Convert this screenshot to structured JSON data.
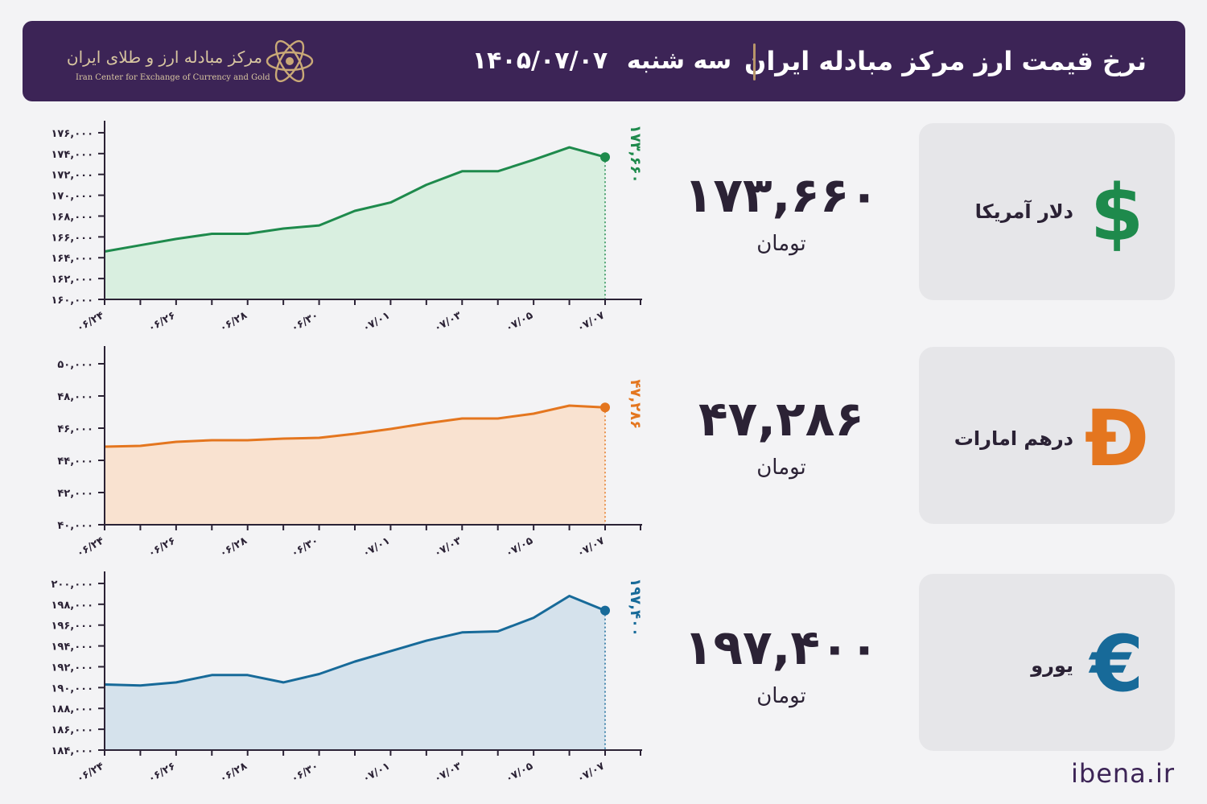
{
  "header": {
    "title": "نرخ قیمت ارز مرکز مبادله ایران",
    "day": "سه شنبه",
    "date": "۱۴۰۵/۰۷/۰۷",
    "logo_text_fa": "مرکز مبادله ارز و طلای ایران",
    "logo_text_en": "Iran Center for Exchange of Currency and Gold"
  },
  "currencies": [
    {
      "name": "دلار آمریکا",
      "price": "۱۷۳,۶۶۰",
      "unit": "تومان",
      "symbol": "$",
      "icon": "dollar-icon",
      "color": "#1e8a4c"
    },
    {
      "name": "درهم امارات",
      "price": "۴۷,۲۸۶",
      "unit": "تومان",
      "symbol": "Đ",
      "icon": "dirham-icon",
      "color": "#e4761f"
    },
    {
      "name": "یورو",
      "price": "۱۹۷,۴۰۰",
      "unit": "تومان",
      "symbol": "€",
      "icon": "euro-icon",
      "color": "#176a99"
    }
  ],
  "footer": {
    "site": "ibena.ir"
  },
  "chart_data": [
    {
      "type": "area",
      "currency": "USD",
      "color": "#1e8a4c",
      "fill": "#d9efe0",
      "x": [
        "۰۶/۲۴",
        "۰۶/۲۵",
        "۰۶/۲۶",
        "۰۶/۲۷",
        "۰۶/۲۸",
        "۰۶/۲۹",
        "۰۶/۳۰",
        "۰۶/۳۱",
        "۰۷/۰۱",
        "۰۷/۰۲",
        "۰۷/۰۳",
        "۰۷/۰۴",
        "۰۷/۰۵",
        "۰۷/۰۶",
        "۰۷/۰۷"
      ],
      "xticks": [
        "۰۶/۲۴",
        "۰۶/۲۶",
        "۰۶/۲۸",
        "۰۶/۳۰",
        "۰۷/۰۱",
        "۰۷/۰۳",
        "۰۷/۰۵",
        "۰۷/۰۷"
      ],
      "values": [
        164600,
        165200,
        165800,
        166300,
        166300,
        166800,
        167100,
        168500,
        169300,
        171000,
        172300,
        172300,
        173400,
        174600,
        173660
      ],
      "ylim": [
        160000,
        177000
      ],
      "yticks": [
        160000,
        162000,
        164000,
        166000,
        168000,
        170000,
        172000,
        174000,
        176000
      ],
      "ytick_labels": [
        "۱۶۰,۰۰۰",
        "۱۶۲,۰۰۰",
        "۱۶۴,۰۰۰",
        "۱۶۶,۰۰۰",
        "۱۶۸,۰۰۰",
        "۱۷۰,۰۰۰",
        "۱۷۲,۰۰۰",
        "۱۷۴,۰۰۰",
        "۱۷۶,۰۰۰"
      ],
      "last_label": "۱۷۳,۶۶۰"
    },
    {
      "type": "area",
      "currency": "AED",
      "color": "#e4761f",
      "fill": "#f9e2d0",
      "x": [
        "۰۶/۲۴",
        "۰۶/۲۵",
        "۰۶/۲۶",
        "۰۶/۲۷",
        "۰۶/۲۸",
        "۰۶/۲۹",
        "۰۶/۳۰",
        "۰۶/۳۱",
        "۰۷/۰۱",
        "۰۷/۰۲",
        "۰۷/۰۳",
        "۰۷/۰۴",
        "۰۷/۰۵",
        "۰۷/۰۶",
        "۰۷/۰۷"
      ],
      "xticks": [
        "۰۶/۲۴",
        "۰۶/۲۶",
        "۰۶/۲۸",
        "۰۶/۳۰",
        "۰۷/۰۱",
        "۰۷/۰۳",
        "۰۷/۰۵",
        "۰۷/۰۷"
      ],
      "values": [
        44850,
        44900,
        45150,
        45250,
        45250,
        45350,
        45400,
        45650,
        45950,
        46300,
        46600,
        46600,
        46900,
        47400,
        47286
      ],
      "ylim": [
        40000,
        51000
      ],
      "yticks": [
        40000,
        42000,
        44000,
        46000,
        48000,
        50000
      ],
      "ytick_labels": [
        "۴۰,۰۰۰",
        "۴۲,۰۰۰",
        "۴۴,۰۰۰",
        "۴۶,۰۰۰",
        "۴۸,۰۰۰",
        "۵۰,۰۰۰"
      ],
      "last_label": "۴۷,۲۸۶"
    },
    {
      "type": "area",
      "currency": "EUR",
      "color": "#176a99",
      "fill": "#d5e2ec",
      "x": [
        "۰۶/۲۴",
        "۰۶/۲۵",
        "۰۶/۲۶",
        "۰۶/۲۷",
        "۰۶/۲۸",
        "۰۶/۲۹",
        "۰۶/۳۰",
        "۰۶/۳۱",
        "۰۷/۰۱",
        "۰۷/۰۲",
        "۰۷/۰۳",
        "۰۷/۰۴",
        "۰۷/۰۵",
        "۰۷/۰۶",
        "۰۷/۰۷"
      ],
      "xticks": [
        "۰۶/۲۴",
        "۰۶/۲۶",
        "۰۶/۲۸",
        "۰۶/۳۰",
        "۰۷/۰۱",
        "۰۷/۰۳",
        "۰۷/۰۵",
        "۰۷/۰۷"
      ],
      "values": [
        190300,
        190200,
        190500,
        191200,
        191200,
        190500,
        191300,
        192500,
        193500,
        194500,
        195300,
        195400,
        196700,
        198800,
        197400
      ],
      "ylim": [
        184000,
        201000
      ],
      "yticks": [
        184000,
        186000,
        188000,
        190000,
        192000,
        194000,
        196000,
        198000,
        200000
      ],
      "ytick_labels": [
        "۱۸۴,۰۰۰",
        "۱۸۶,۰۰۰",
        "۱۸۸,۰۰۰",
        "۱۹۰,۰۰۰",
        "۱۹۲,۰۰۰",
        "۱۹۴,۰۰۰",
        "۱۹۶,۰۰۰",
        "۱۹۸,۰۰۰",
        "۲۰۰,۰۰۰"
      ],
      "last_label": "۱۹۷,۴۰۰"
    }
  ]
}
